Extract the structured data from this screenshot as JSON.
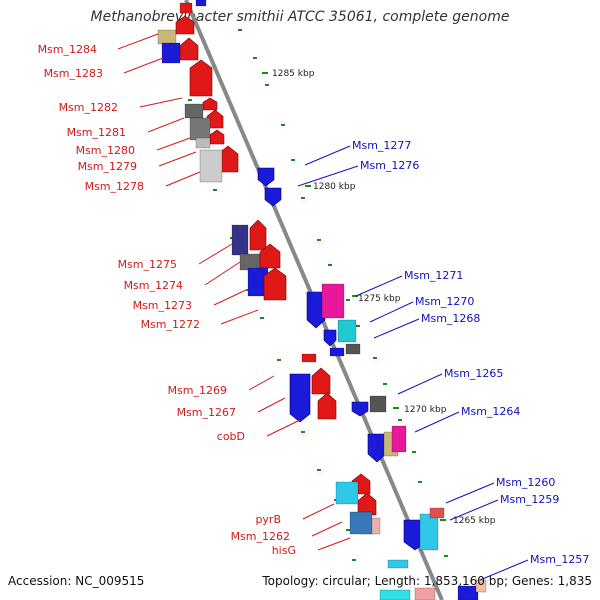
{
  "title": "Methanobrevibacter smithii ATCC 35061, complete genome",
  "footer": {
    "accession_label": "Accession:",
    "accession": "NC_009515",
    "topology": "Topology: circular; ",
    "length": "Length: 1,853,160 bp; ",
    "genes": "Genes: 1,835"
  },
  "colors": {
    "forward_label": "#d11a1a",
    "reverse_label": "#1111bb",
    "backbone": "#888888",
    "tick": "#1a8a1a"
  },
  "scale_labels": [
    "1285 kbp",
    "1280 kbp",
    "1275 kbp",
    "1270 kbp",
    "1265 kbp"
  ],
  "forward_labels": [
    "Msm_1284",
    "Msm_1283",
    "Msm_1282",
    "Msm_1281",
    "Msm_1280",
    "Msm_1279",
    "Msm_1278",
    "Msm_1275",
    "Msm_1274",
    "Msm_1273",
    "Msm_1272",
    "Msm_1269",
    "Msm_1267",
    "cobD",
    "pyrB",
    "Msm_1262",
    "hisG"
  ],
  "reverse_labels": [
    "Msm_1277",
    "Msm_1276",
    "Msm_1271",
    "Msm_1270",
    "Msm_1268",
    "Msm_1265",
    "Msm_1264",
    "Msm_1260",
    "Msm_1259",
    "Msm_1257"
  ]
}
